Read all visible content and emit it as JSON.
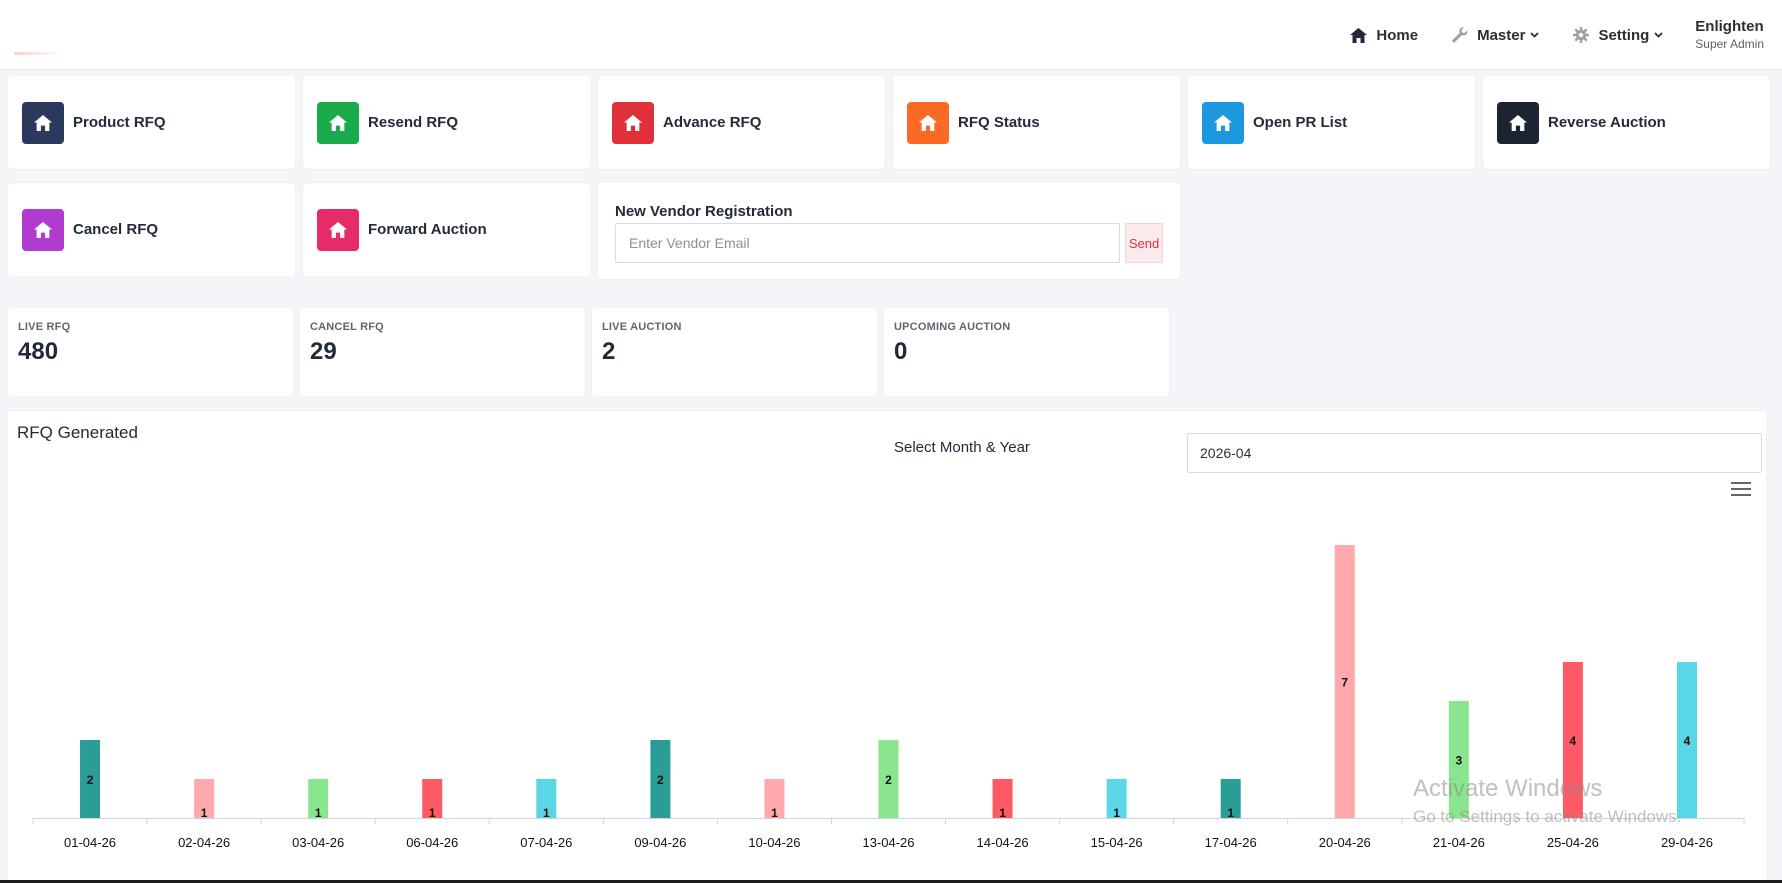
{
  "header": {
    "nav": [
      {
        "label": "Home",
        "icon": "home-icon"
      },
      {
        "label": "Master",
        "icon": "wrench-icon"
      },
      {
        "label": "Setting",
        "icon": "gear-icon"
      }
    ],
    "user": {
      "name": "Enlighten",
      "role": "Super Admin"
    }
  },
  "tiles": [
    {
      "label": "Product RFQ",
      "color": "#2b3a5c",
      "icon": "home-icon"
    },
    {
      "label": "Resend RFQ",
      "color": "#1aac4c",
      "icon": "home-icon"
    },
    {
      "label": "Advance RFQ",
      "color": "#e0303a",
      "icon": "home-icon"
    },
    {
      "label": "RFQ Status",
      "color": "#fa6a24",
      "icon": "home-icon"
    },
    {
      "label": "Open PR List",
      "color": "#1c98de",
      "icon": "home-icon"
    },
    {
      "label": "Reverse Auction",
      "color": "#1c2431",
      "icon": "home-icon"
    },
    {
      "label": "Cancel RFQ",
      "color": "#b13bcf",
      "icon": "home-icon"
    },
    {
      "label": "Forward Auction",
      "color": "#e62b6b",
      "icon": "home-icon"
    }
  ],
  "vendor": {
    "title": "New Vendor Registration",
    "placeholder": "Enter Vendor Email",
    "send_label": "Send"
  },
  "stats": [
    {
      "label": "LIVE RFQ",
      "value": "480"
    },
    {
      "label": "CANCEL RFQ",
      "value": "29"
    },
    {
      "label": "LIVE AUCTION",
      "value": "2"
    },
    {
      "label": "UPCOMING AUCTION",
      "value": "0"
    }
  ],
  "chart_panel": {
    "title": "RFQ Generated",
    "month_label": "Select Month & Year",
    "month_value": "2026-04"
  },
  "chart_data": {
    "type": "bar",
    "title": "RFQ Generated",
    "categories": [
      "01-04-26",
      "02-04-26",
      "03-04-26",
      "06-04-26",
      "07-04-26",
      "09-04-26",
      "10-04-26",
      "13-04-26",
      "14-04-26",
      "15-04-26",
      "17-04-26",
      "20-04-26",
      "21-04-26",
      "25-04-26",
      "29-04-26"
    ],
    "values": [
      2,
      1,
      1,
      1,
      1,
      2,
      1,
      2,
      1,
      1,
      1,
      7,
      3,
      4,
      4
    ],
    "colors": [
      "#2a9d96",
      "#ffa9ac",
      "#8ae68e",
      "#fd5a66",
      "#5ad7e6",
      "#2a9d96",
      "#ffa9ac",
      "#8ae68e",
      "#fd5a66",
      "#5ad7e6",
      "#2a9d96",
      "#ffa9ac",
      "#8ae68e",
      "#fd5a66",
      "#5ad7e6"
    ],
    "ylim": [
      0,
      7
    ],
    "grid": false,
    "data_labels": true
  },
  "watermark": {
    "line1": "Activate Windows",
    "line2": "Go to Settings to activate Windows."
  }
}
